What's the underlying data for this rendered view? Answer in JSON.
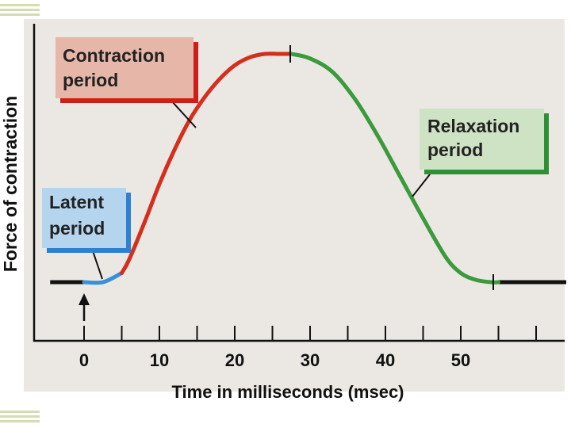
{
  "chart_data": {
    "type": "line",
    "title": "",
    "xlabel": "Time in milliseconds (msec)",
    "ylabel": "Force of contraction",
    "xlim": [
      -6,
      64
    ],
    "ylim": [
      0,
      1
    ],
    "x_ticks": [
      0,
      10,
      20,
      30,
      40,
      50
    ],
    "x_minor_ticks": [
      5,
      15,
      25,
      35,
      45,
      55
    ],
    "stimulus_time": 0,
    "baseline": [
      {
        "x": [
          -4.5,
          0
        ],
        "y": [
          0,
          0
        ]
      },
      {
        "x": [
          55,
          64
        ],
        "y": [
          0,
          0
        ]
      }
    ],
    "series": [
      {
        "name": "Latent period",
        "color": "#3a8fd6",
        "x": [
          0,
          2.5,
          5
        ],
        "y": [
          0,
          0.0,
          0.04
        ]
      },
      {
        "name": "Contraction period",
        "color": "#d42f1e",
        "x": [
          5,
          6,
          8,
          10,
          12,
          14,
          16,
          18,
          20,
          22,
          24,
          26,
          27.5
        ],
        "y": [
          0.04,
          0.1,
          0.26,
          0.43,
          0.58,
          0.71,
          0.81,
          0.89,
          0.95,
          0.985,
          1.0,
          1.0,
          1.0
        ]
      },
      {
        "name": "Relaxation period",
        "color": "#3b9a3b",
        "x": [
          27.5,
          30,
          33,
          36,
          39,
          42,
          45,
          48,
          50,
          52,
          54,
          55
        ],
        "y": [
          1.0,
          0.98,
          0.92,
          0.8,
          0.64,
          0.46,
          0.28,
          0.11,
          0.04,
          0.01,
          0.0,
          0.0
        ]
      }
    ],
    "annotations": [
      {
        "line1": "Contraction",
        "line2": "period",
        "points_to_x": 15,
        "bg": "#e6b7a8",
        "edge": "#cc1f1a"
      },
      {
        "line1": "Relaxation",
        "line2": "period",
        "points_to_x": 44,
        "bg": "#cde3c4",
        "edge": "#2f8f35"
      },
      {
        "line1": "Latent",
        "line2": "period",
        "points_to_x": 2.5,
        "bg": "#b5d5ef",
        "edge": "#2f80d1"
      }
    ]
  }
}
